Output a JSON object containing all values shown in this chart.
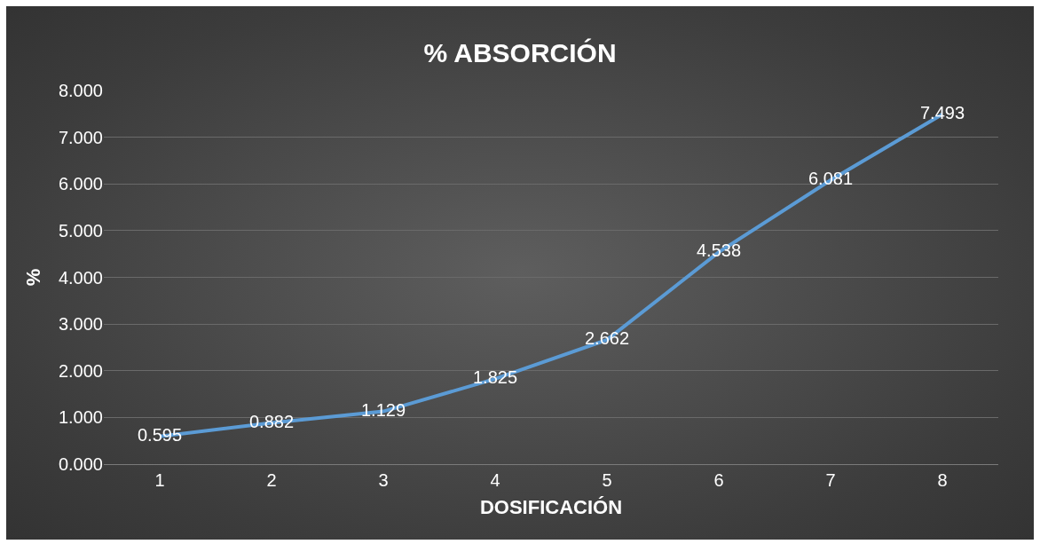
{
  "chart_data": {
    "type": "line",
    "title": "% ABSORCIÓN",
    "xlabel": "DOSIFICACIÓN",
    "ylabel": "%",
    "categories": [
      "1",
      "2",
      "3",
      "4",
      "5",
      "6",
      "7",
      "8"
    ],
    "series": [
      {
        "color": "#5b9bd5",
        "values": [
          0.595,
          0.882,
          1.129,
          1.825,
          2.662,
          4.538,
          6.081,
          7.493
        ]
      }
    ],
    "ylim": [
      0,
      8
    ],
    "yticks": [
      {
        "value": 0,
        "label": "0.000"
      },
      {
        "value": 1,
        "label": "1.000"
      },
      {
        "value": 2,
        "label": "2.000"
      },
      {
        "value": 3,
        "label": "3.000"
      },
      {
        "value": 4,
        "label": "4.000"
      },
      {
        "value": 5,
        "label": "5.000"
      },
      {
        "value": 6,
        "label": "6.000"
      },
      {
        "value": 7,
        "label": "7.000"
      },
      {
        "value": 8,
        "label": "8.000"
      }
    ],
    "grid": "y",
    "data_labels": true,
    "marker": "none",
    "line_style": "solid"
  }
}
